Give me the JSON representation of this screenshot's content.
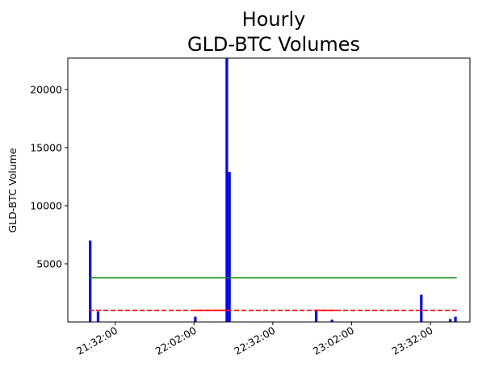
{
  "chart_data": {
    "type": "bar",
    "title": "Hourly\nGLD-BTC Volumes",
    "title_lines": [
      "Hourly",
      "GLD-BTC Volumes"
    ],
    "xlabel": "",
    "ylabel": "GLD-BTC Volume",
    "ylim": [
      0,
      22700
    ],
    "y_ticks": [
      5000,
      10000,
      15000,
      20000
    ],
    "y_tick_labels": [
      "5000",
      "10000",
      "15000",
      "20000"
    ],
    "x_range": [
      "21:14:00",
      "23:47:00"
    ],
    "x_ticks": [
      "21:32:00",
      "22:02:00",
      "22:32:00",
      "23:02:00",
      "23:32:00"
    ],
    "x_tick_labels": [
      "21:32:00",
      "22:02:00",
      "22:32:00",
      "23:02:00",
      "23:32:00"
    ],
    "bar_color": "#0000ff",
    "bars": [
      {
        "time": "21:22:30",
        "value": 7000
      },
      {
        "time": "21:25:30",
        "value": 900
      },
      {
        "time": "22:02:30",
        "value": 450
      },
      {
        "time": "22:14:30",
        "value": 22700
      },
      {
        "time": "22:15:30",
        "value": 12900
      },
      {
        "time": "22:48:30",
        "value": 950
      },
      {
        "time": "22:54:30",
        "value": 200
      },
      {
        "time": "23:28:30",
        "value": 2350
      },
      {
        "time": "23:39:30",
        "value": 250
      },
      {
        "time": "23:41:30",
        "value": 450
      }
    ],
    "reference_lines": [
      {
        "color": "#008000",
        "style": "solid",
        "value": 3800,
        "x_start": "21:22:00",
        "x_end": "23:42:00"
      },
      {
        "color": "#ff0000",
        "style": "dashed",
        "value": 1000,
        "x_start": "21:22:00",
        "x_end": "23:42:00"
      },
      {
        "color": "#ff0000",
        "style": "solid",
        "value": 1000,
        "x_start": "22:02:00",
        "x_end": "22:15:00"
      },
      {
        "color": "#ff0000",
        "style": "solid",
        "value": 1000,
        "x_start": "22:48:00",
        "x_end": "22:56:00"
      }
    ],
    "grid": false,
    "legend": "none"
  }
}
